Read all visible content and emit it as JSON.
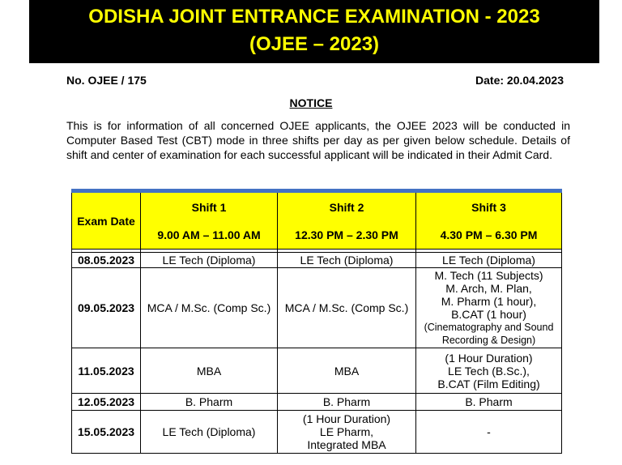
{
  "header": {
    "title_line1": "ODISHA JOINT ENTRANCE EXAMINATION - 2023",
    "title_line2": "(OJEE – 2023)"
  },
  "ref_no": "No. OJEE / 175",
  "date": "Date: 20.04.2023",
  "notice_title": "NOTICE",
  "body": "This is for information of all concerned OJEE applicants, the OJEE 2023 will be conducted in Computer Based Test (CBT) mode in three shifts per day as per given below schedule. Details of shift and center of examination for each successful applicant will be indicated in their Admit Card.",
  "table": {
    "headers": {
      "date": "Exam Date",
      "shifts": [
        {
          "name": "Shift 1",
          "time": "9.00 AM – 11.00 AM"
        },
        {
          "name": "Shift 2",
          "time": "12.30 PM – 2.30 PM"
        },
        {
          "name": "Shift 3",
          "time": "4.30 PM – 6.30 PM"
        }
      ]
    },
    "rows": [
      {
        "date": "08.05.2023",
        "s1": [
          "LE Tech (Diploma)"
        ],
        "s2": [
          "LE Tech (Diploma)"
        ],
        "s3": [
          "LE Tech (Diploma)"
        ]
      },
      {
        "date": "09.05.2023",
        "s1": [
          "MCA / M.Sc. (Comp Sc.)"
        ],
        "s2": [
          "MCA / M.Sc. (Comp Sc.)"
        ],
        "s3": [
          "M. Tech (11 Subjects)",
          "M. Arch, M. Plan,",
          "M. Pharm (1 hour),",
          "B.CAT (1 hour)",
          "(Cinematography and Sound",
          "Recording & Design)"
        ]
      },
      {
        "date": "11.05.2023",
        "s1": [
          "MBA"
        ],
        "s2": [
          "MBA"
        ],
        "s3": [
          "(1 Hour Duration)",
          "LE Tech (B.Sc.),",
          "B.CAT (Film Editing)"
        ]
      },
      {
        "date": "12.05.2023",
        "s1": [
          "B. Pharm"
        ],
        "s2": [
          "B. Pharm"
        ],
        "s3": [
          "B. Pharm"
        ]
      },
      {
        "date": "15.05.2023",
        "s1": [
          "LE Tech (Diploma)"
        ],
        "s2": [
          "(1 Hour Duration)",
          "LE Pharm,",
          "Integrated MBA"
        ],
        "s3": [
          "-"
        ]
      }
    ]
  },
  "colors": {
    "banner_bg": "#000000",
    "banner_text": "#ffff00",
    "header_bg": "#ffff00",
    "table_top_rule": "#4472c4"
  }
}
